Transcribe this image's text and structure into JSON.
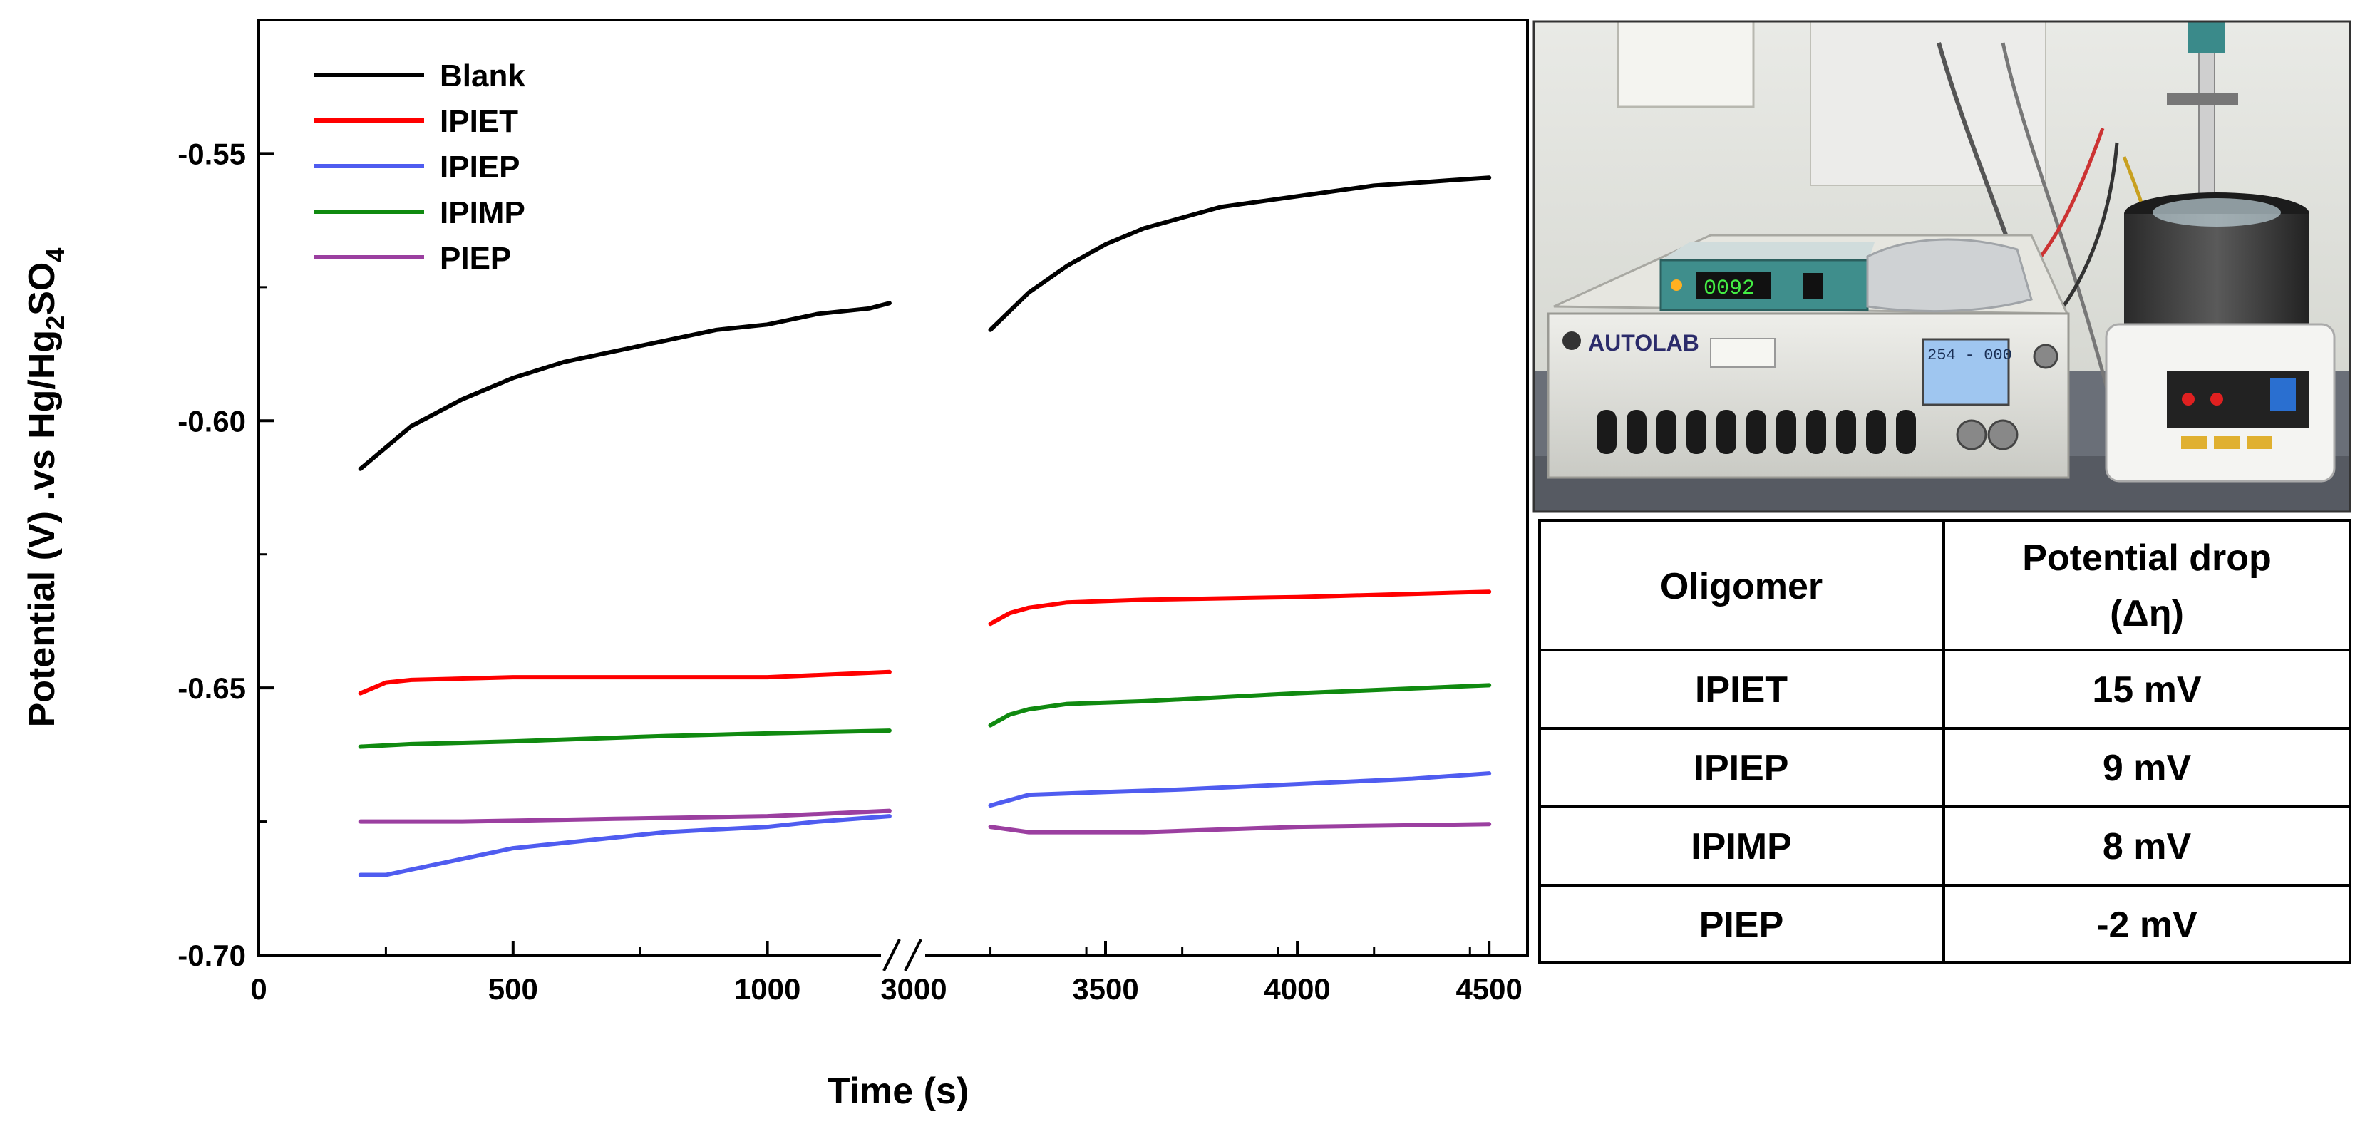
{
  "chart_data": {
    "type": "line",
    "title": "",
    "xlabel": "Time (s)",
    "ylabel": {
      "main": "Potential (V) .vs Hg/Hg",
      "sub1": "2",
      "mid": "SO",
      "sub2": "4"
    },
    "ylim": [
      -0.7,
      -0.525
    ],
    "yticks": [
      "-0.55",
      "-0.60",
      "-0.65",
      "-0.70"
    ],
    "yticks_values": [
      -0.55,
      -0.6,
      -0.65,
      -0.7
    ],
    "x_segments": [
      {
        "range": [
          0,
          1250
        ],
        "ticks": [
          0,
          500,
          1000
        ],
        "tick_labels": [
          "0",
          "500",
          "1000"
        ]
      },
      {
        "range": [
          2950,
          4600
        ],
        "ticks": [
          3000,
          3500,
          4000,
          4500
        ],
        "tick_labels": [
          "3000",
          "3500",
          "4000",
          "4500"
        ]
      }
    ],
    "axis_break": "between 1250 and 2950",
    "series": [
      {
        "name": "Blank",
        "color": "#000000",
        "seg1": [
          [
            200,
            -0.609
          ],
          [
            250,
            -0.605
          ],
          [
            300,
            -0.601
          ],
          [
            400,
            -0.596
          ],
          [
            500,
            -0.592
          ],
          [
            600,
            -0.589
          ],
          [
            700,
            -0.587
          ],
          [
            800,
            -0.585
          ],
          [
            900,
            -0.583
          ],
          [
            1000,
            -0.582
          ],
          [
            1100,
            -0.58
          ],
          [
            1200,
            -0.579
          ],
          [
            1240,
            -0.578
          ]
        ],
        "seg2": [
          [
            3200,
            -0.583
          ],
          [
            3300,
            -0.576
          ],
          [
            3400,
            -0.571
          ],
          [
            3500,
            -0.567
          ],
          [
            3600,
            -0.564
          ],
          [
            3700,
            -0.562
          ],
          [
            3800,
            -0.56
          ],
          [
            3900,
            -0.559
          ],
          [
            4000,
            -0.558
          ],
          [
            4100,
            -0.557
          ],
          [
            4200,
            -0.556
          ],
          [
            4300,
            -0.5555
          ],
          [
            4400,
            -0.555
          ],
          [
            4500,
            -0.5545
          ]
        ]
      },
      {
        "name": "IPIET",
        "color": "#ff0000",
        "seg1": [
          [
            200,
            -0.651
          ],
          [
            250,
            -0.649
          ],
          [
            300,
            -0.6485
          ],
          [
            500,
            -0.648
          ],
          [
            800,
            -0.648
          ],
          [
            1000,
            -0.648
          ],
          [
            1240,
            -0.647
          ]
        ],
        "seg2": [
          [
            3200,
            -0.638
          ],
          [
            3250,
            -0.636
          ],
          [
            3300,
            -0.635
          ],
          [
            3400,
            -0.634
          ],
          [
            3600,
            -0.6335
          ],
          [
            4000,
            -0.633
          ],
          [
            4500,
            -0.632
          ]
        ]
      },
      {
        "name": "IPIEP",
        "color": "#4f5cf0",
        "seg1": [
          [
            200,
            -0.685
          ],
          [
            250,
            -0.685
          ],
          [
            300,
            -0.684
          ],
          [
            400,
            -0.682
          ],
          [
            500,
            -0.68
          ],
          [
            600,
            -0.679
          ],
          [
            700,
            -0.678
          ],
          [
            800,
            -0.677
          ],
          [
            900,
            -0.6765
          ],
          [
            1000,
            -0.676
          ],
          [
            1100,
            -0.675
          ],
          [
            1240,
            -0.674
          ]
        ],
        "seg2": [
          [
            3200,
            -0.672
          ],
          [
            3250,
            -0.671
          ],
          [
            3300,
            -0.67
          ],
          [
            3500,
            -0.6695
          ],
          [
            3700,
            -0.669
          ],
          [
            4000,
            -0.668
          ],
          [
            4300,
            -0.667
          ],
          [
            4500,
            -0.666
          ]
        ]
      },
      {
        "name": "IPIMP",
        "color": "#108a10",
        "seg1": [
          [
            200,
            -0.661
          ],
          [
            300,
            -0.6605
          ],
          [
            500,
            -0.66
          ],
          [
            800,
            -0.659
          ],
          [
            1000,
            -0.6585
          ],
          [
            1240,
            -0.658
          ]
        ],
        "seg2": [
          [
            3200,
            -0.657
          ],
          [
            3250,
            -0.655
          ],
          [
            3300,
            -0.654
          ],
          [
            3400,
            -0.653
          ],
          [
            3600,
            -0.6525
          ],
          [
            4000,
            -0.651
          ],
          [
            4500,
            -0.6495
          ]
        ]
      },
      {
        "name": "PIEP",
        "color": "#9b3fa0",
        "seg1": [
          [
            200,
            -0.675
          ],
          [
            400,
            -0.675
          ],
          [
            700,
            -0.6745
          ],
          [
            1000,
            -0.674
          ],
          [
            1240,
            -0.673
          ]
        ],
        "seg2": [
          [
            3200,
            -0.676
          ],
          [
            3300,
            -0.677
          ],
          [
            3400,
            -0.677
          ],
          [
            3600,
            -0.677
          ],
          [
            4000,
            -0.676
          ],
          [
            4500,
            -0.6755
          ]
        ]
      }
    ],
    "table": {
      "headers": [
        "Oligomer",
        "Potential drop",
        "(Δη)"
      ],
      "rows": [
        [
          "IPIET",
          "15 mV"
        ],
        [
          "IPIEP",
          "9 mV"
        ],
        [
          "IPIMP",
          "8 mV"
        ],
        [
          "PIEP",
          "-2 mV"
        ]
      ]
    },
    "photo": {
      "device_label": "AUTOLAB",
      "display_value": "0092",
      "lcd_text": "254 - 000"
    }
  }
}
